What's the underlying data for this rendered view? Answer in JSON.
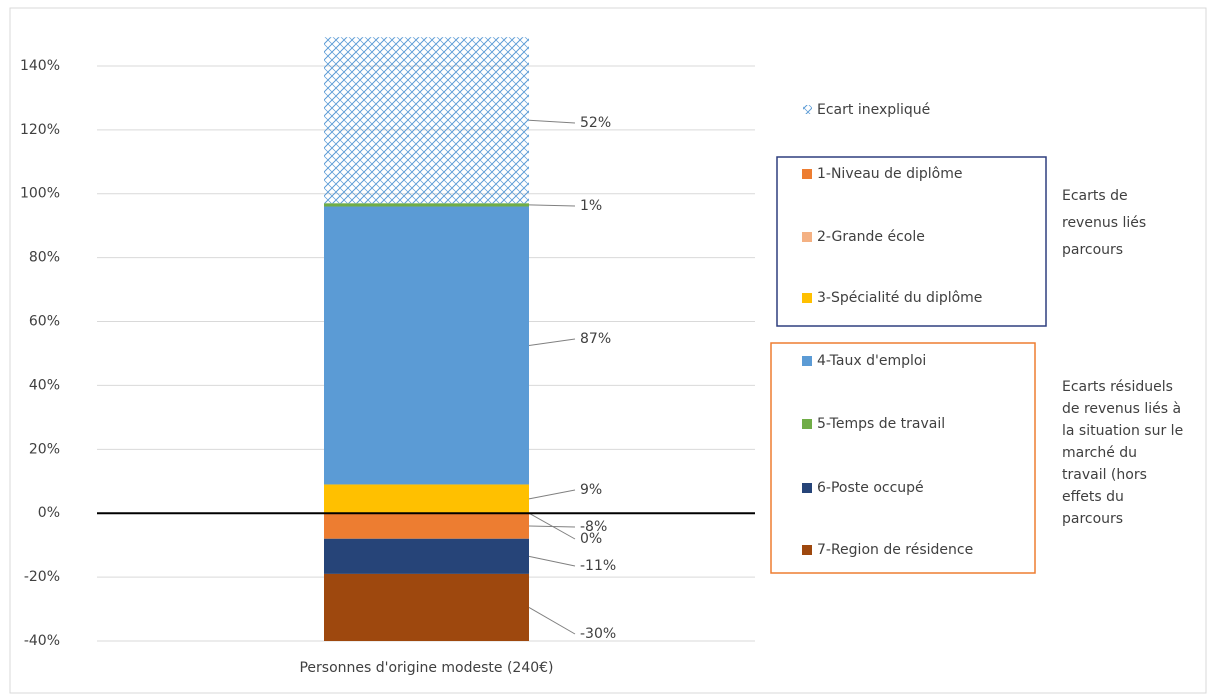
{
  "chart_data": {
    "type": "stacked-bar",
    "categories": [
      "Personnes d'origine modeste (240€)"
    ],
    "ylim": [
      -40,
      150
    ],
    "yticks": [
      {
        "value": -40,
        "label": "-40%"
      },
      {
        "value": -20,
        "label": "-20%"
      },
      {
        "value": 0,
        "label": "0%"
      },
      {
        "value": 20,
        "label": "20%"
      },
      {
        "value": 40,
        "label": "40%"
      },
      {
        "value": 60,
        "label": "60%"
      },
      {
        "value": 80,
        "label": "80%"
      },
      {
        "value": 100,
        "label": "100%"
      },
      {
        "value": 120,
        "label": "120%"
      },
      {
        "value": 140,
        "label": "140%"
      }
    ],
    "grid": true,
    "series": [
      {
        "name": "Ecart inexpliqué",
        "color": "#5b9bd5",
        "hatch": true,
        "values": [
          52
        ],
        "value_labels": [
          "52%"
        ]
      },
      {
        "name": "1-Niveau de diplôme",
        "color": "#ed7d31",
        "values": [
          -8
        ],
        "value_labels": [
          "-8%"
        ]
      },
      {
        "name": "2-Grande école",
        "color": "#f4b183",
        "values": [
          0
        ],
        "value_labels": [
          "0%"
        ]
      },
      {
        "name": "3-Spécialité du diplôme",
        "color": "#ffc000",
        "values": [
          9
        ],
        "value_labels": [
          "9%"
        ]
      },
      {
        "name": "4-Taux d'emploi",
        "color": "#5b9bd5",
        "values": [
          87
        ],
        "value_labels": [
          "87%"
        ]
      },
      {
        "name": "5-Temps de travail",
        "color": "#70ad47",
        "values": [
          1
        ],
        "value_labels": [
          "1%"
        ]
      },
      {
        "name": "6-Poste occupé",
        "color": "#264478",
        "values": [
          -11
        ],
        "value_labels": [
          "-11%"
        ]
      },
      {
        "name": "7-Region de résidence",
        "color": "#9e480e",
        "values": [
          -30
        ],
        "value_labels": [
          "-30%"
        ]
      }
    ],
    "groups": [
      {
        "color": "#2f3f7f",
        "lines": [
          "Ecarts de",
          "revenus liés",
          "parcours"
        ]
      },
      {
        "color": "#ed7d31",
        "lines": [
          "Ecarts résiduels",
          "de revenus liés à",
          "la situation sur le",
          "marché du",
          "travail (hors",
          "effets du",
          "parcours"
        ]
      }
    ]
  }
}
